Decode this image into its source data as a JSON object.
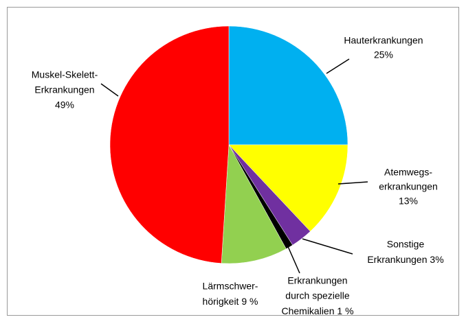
{
  "chart_data": {
    "type": "pie",
    "categories": [
      [
        "Hauterkrankungen"
      ],
      [
        "Atemwegs-",
        "erkrankungen"
      ],
      [
        "Sonstige",
        "Erkrankungen"
      ],
      [
        "Erkrankungen",
        "durch spezielle",
        "Chemikalien"
      ],
      [
        "Lärmschwer-",
        "hörigkeit"
      ],
      [
        "Muskel-Skelett-",
        "Erkrankungen"
      ]
    ],
    "values": [
      25,
      13,
      3,
      1,
      9,
      49
    ],
    "value_labels": [
      "25%",
      "13%",
      "3%",
      "1 %",
      "9 %",
      "49%"
    ],
    "colors": [
      "#00b0f0",
      "#ffff00",
      "#7030a0",
      "#000000",
      "#92d050",
      "#ff0000"
    ]
  }
}
